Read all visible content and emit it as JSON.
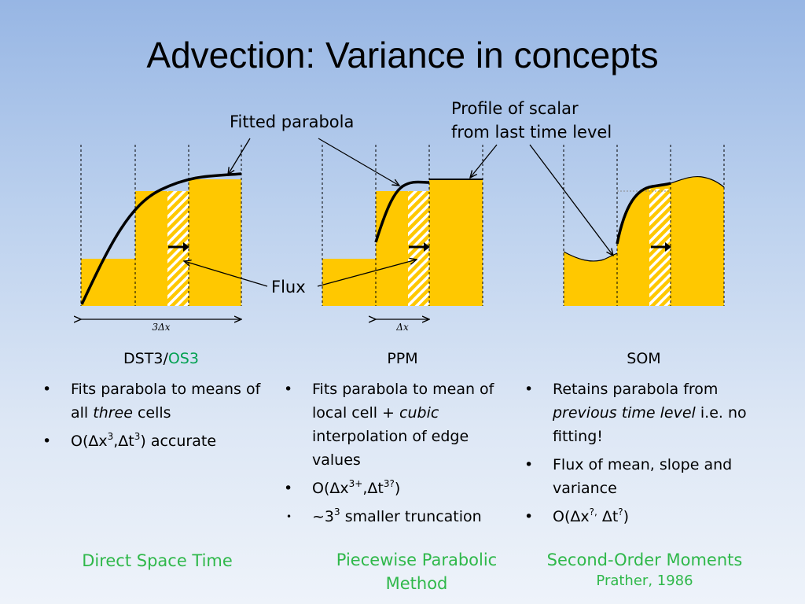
{
  "title": "Advection: Variance in concepts",
  "callouts": {
    "fitted_parabola": "Fitted parabola",
    "profile_line1": "Profile of scalar",
    "profile_line2": "from last time level",
    "flux": "Flux"
  },
  "dimension_labels": {
    "three_dx": "3Δx",
    "dx": "Δx"
  },
  "columns": [
    {
      "name_part1": "DST3",
      "name_sep": "/",
      "name_part2": "OS3",
      "bullets": {
        "b1_text1": "Fits parabola to means of all ",
        "b1_em": "three",
        "b1_text2": " cells",
        "b2_text1": "O(Δx",
        "b2_sup1": "3",
        "b2_text2": ",Δt",
        "b2_sup2": "3",
        "b2_text3": ") accurate"
      },
      "footer_line1": "Direct Space Time"
    },
    {
      "name": "PPM",
      "bullets": {
        "b1_text1": "Fits parabola to mean of local cell + ",
        "b1_em": "cubic",
        "b1_text2": " interpolation of edge values",
        "b2_text1": "O(Δx",
        "b2_sup1": "3+",
        "b2_text2": ",Δt",
        "b2_sup2": "3?",
        "b2_text3": ")",
        "b3_text1": "~3",
        "b3_sup1": "3",
        "b3_text2": " smaller truncation"
      },
      "footer_line1": "Piecewise Parabolic",
      "footer_line2": "Method"
    },
    {
      "name": "SOM",
      "bullets": {
        "b1_text1": "Retains parabola from ",
        "b1_em": "previous time level",
        "b1_text2": " i.e. no fitting!",
        "b2": "Flux of mean, slope and variance",
        "b3_text1": "O(Δx",
        "b3_sup1": "?,",
        "b3_text2": " Δt",
        "b3_sup2": "?",
        "b3_text3": ")"
      },
      "footer_line1": "Second-Order Moments",
      "footer_cite": "Prather, 1986"
    }
  ],
  "colors": {
    "cell_fill": "#ffc800",
    "footer_green": "#2fb84a",
    "os3_green": "#00a050"
  }
}
